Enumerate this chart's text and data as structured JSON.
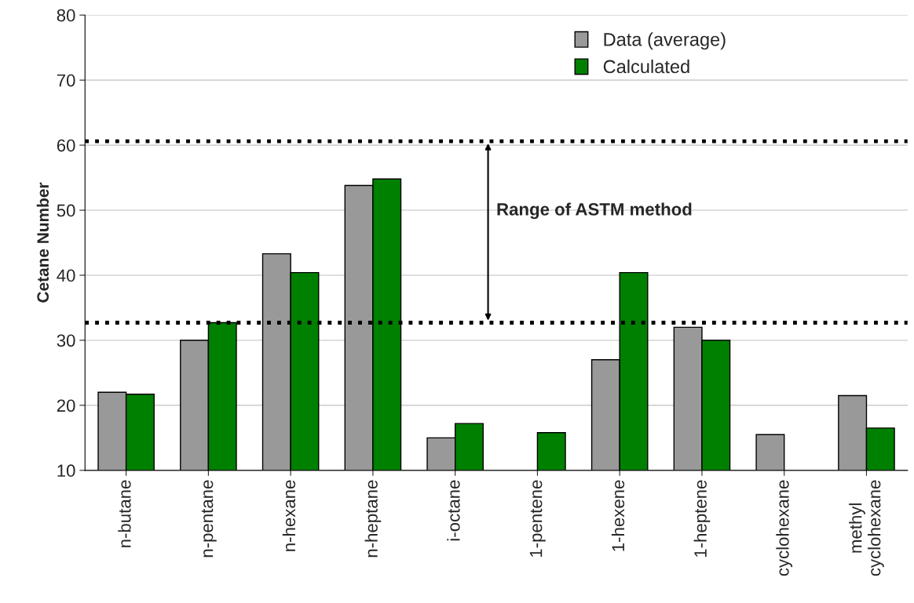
{
  "chart_data": {
    "type": "bar",
    "ylabel": "Cetane Number",
    "categories": [
      "n-butane",
      "n-pentane",
      "n-hexane",
      "n-heptane",
      "i-octane",
      "1-pentene",
      "1-hexene",
      "1-heptene",
      "cyclohexane",
      "methyl\ncyclohexane"
    ],
    "series": [
      {
        "name": "Data (average)",
        "color": "#999999",
        "values": [
          22,
          30,
          43.3,
          53.8,
          15,
          null,
          27,
          32,
          15.5,
          21.5
        ]
      },
      {
        "name": "Calculated",
        "color": "#008000",
        "values": [
          21.7,
          32.7,
          40.4,
          54.8,
          17.2,
          15.8,
          40.4,
          30,
          null,
          16.5
        ]
      }
    ],
    "ylim": [
      10,
      80
    ],
    "yticks": [
      10,
      20,
      30,
      40,
      50,
      60,
      70,
      80
    ],
    "grid": "y",
    "legend": "top right",
    "ref_lines": [
      {
        "axis": "y",
        "value": 60.6,
        "color": "#000000",
        "line_style": "dotted"
      },
      {
        "axis": "y",
        "value": 32.7,
        "color": "#000000",
        "line_style": "dotted"
      }
    ],
    "annotations": [
      "Range of ASTM method"
    ]
  }
}
